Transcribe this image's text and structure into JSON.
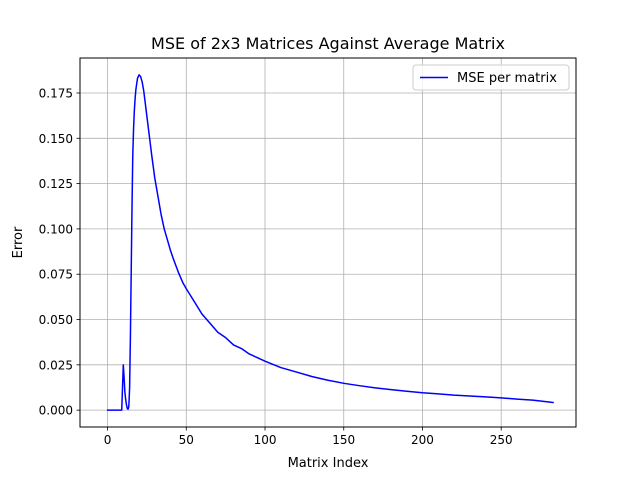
{
  "chart_data": {
    "type": "line",
    "title": "MSE of 2x3 Matrices Against Average Matrix",
    "xlabel": "Matrix Index",
    "ylabel": "Error",
    "xlim": [
      -17.5,
      297.5
    ],
    "ylim": [
      -0.0093,
      0.1943
    ],
    "xticks": [
      0,
      50,
      100,
      150,
      200,
      250
    ],
    "xtick_labels": [
      "0",
      "50",
      "100",
      "150",
      "200",
      "250"
    ],
    "yticks": [
      0.0,
      0.025,
      0.05,
      0.075,
      0.1,
      0.125,
      0.15,
      0.175
    ],
    "ytick_labels": [
      "0.000",
      "0.025",
      "0.050",
      "0.075",
      "0.100",
      "0.125",
      "0.150",
      "0.175"
    ],
    "grid": true,
    "legend": {
      "position": "upper right"
    },
    "series": [
      {
        "name": "MSE per matrix",
        "color": "#0000ff",
        "x": [
          0,
          2,
          4,
          6,
          8,
          9,
          10,
          10.5,
          11,
          11.5,
          12,
          12.5,
          13,
          13.5,
          14,
          14.5,
          15,
          15.5,
          16,
          16.5,
          17,
          17.5,
          18,
          18.5,
          19,
          19.5,
          20,
          21,
          22,
          23,
          24,
          25,
          26,
          27,
          28,
          30,
          32,
          34,
          36,
          38,
          40,
          42,
          45,
          48,
          50,
          55,
          60,
          65,
          70,
          75,
          80,
          85,
          90,
          95,
          100,
          110,
          120,
          130,
          140,
          150,
          160,
          170,
          180,
          190,
          200,
          210,
          220,
          230,
          240,
          250,
          260,
          270,
          283
        ],
        "values": [
          0.0,
          0.0,
          0.0,
          0.0,
          0.0,
          0.0,
          0.025,
          0.018,
          0.01,
          0.006,
          0.003,
          0.001,
          0.0005,
          0.002,
          0.012,
          0.04,
          0.075,
          0.11,
          0.14,
          0.155,
          0.165,
          0.172,
          0.177,
          0.18,
          0.183,
          0.184,
          0.185,
          0.184,
          0.181,
          0.176,
          0.169,
          0.162,
          0.155,
          0.148,
          0.141,
          0.128,
          0.118,
          0.108,
          0.1,
          0.094,
          0.088,
          0.083,
          0.076,
          0.07,
          0.067,
          0.06,
          0.053,
          0.048,
          0.043,
          0.04,
          0.036,
          0.034,
          0.031,
          0.029,
          0.027,
          0.0235,
          0.021,
          0.0185,
          0.0165,
          0.0148,
          0.0135,
          0.0123,
          0.0113,
          0.0104,
          0.0096,
          0.009,
          0.0083,
          0.0078,
          0.0073,
          0.0068,
          0.0061,
          0.0055,
          0.0042
        ]
      }
    ]
  }
}
